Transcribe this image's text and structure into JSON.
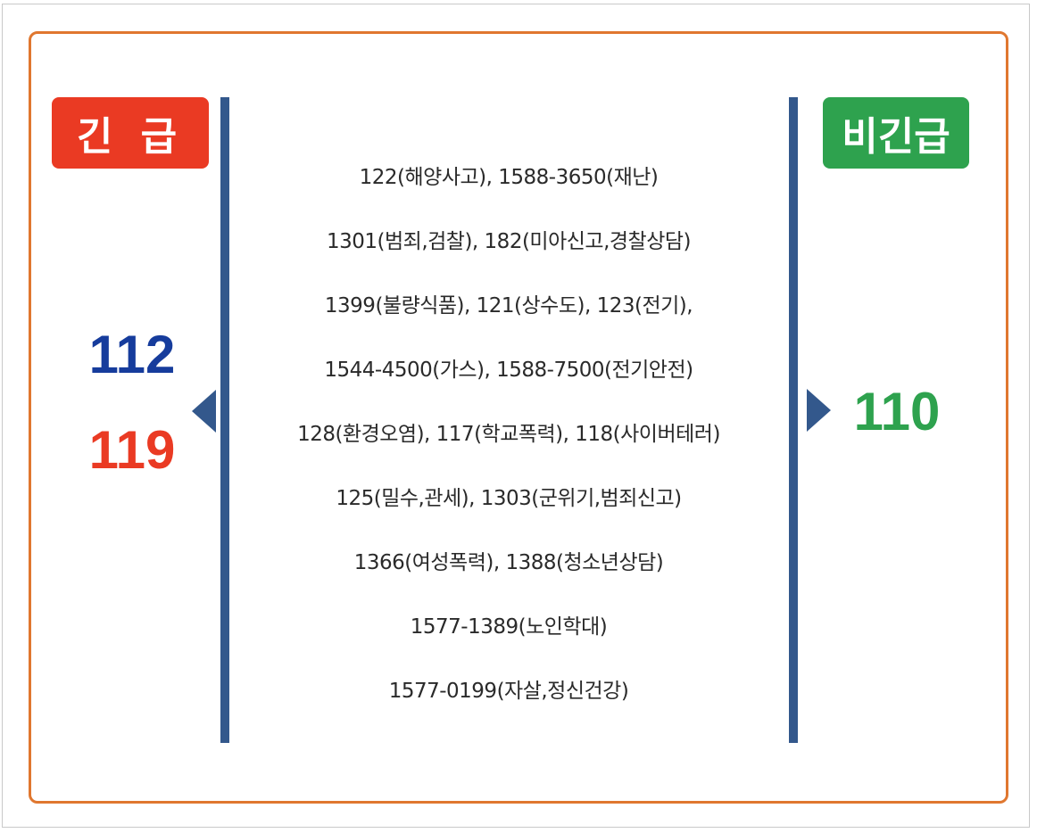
{
  "emergency": {
    "label": "긴 급",
    "numbers": [
      "112",
      "119"
    ],
    "colors": {
      "badge": "#ea3a23",
      "n112": "#163c9c",
      "n119": "#ea3a23"
    }
  },
  "non_emergency": {
    "label": "비긴급",
    "number": "110",
    "color": "#2ea24e"
  },
  "hotlines": [
    "122(해양사고), 1588-3650(재난)",
    "1301(범죄,검찰), 182(미아신고,경찰상담)",
    "1399(불량식품), 121(상수도), 123(전기),",
    "1544-4500(가스), 1588-7500(전기안전)",
    "128(환경오염), 117(학교폭력), 118(사이버테러)",
    "125(밀수,관세), 1303(군위기,범죄신고)",
    "1366(여성폭력), 1388(청소년상담)",
    "1577-1389(노인학대)",
    "1577-0199(자살,정신건강)"
  ],
  "accent_colors": {
    "frame": "#e0772f",
    "divider": "#33588c"
  }
}
